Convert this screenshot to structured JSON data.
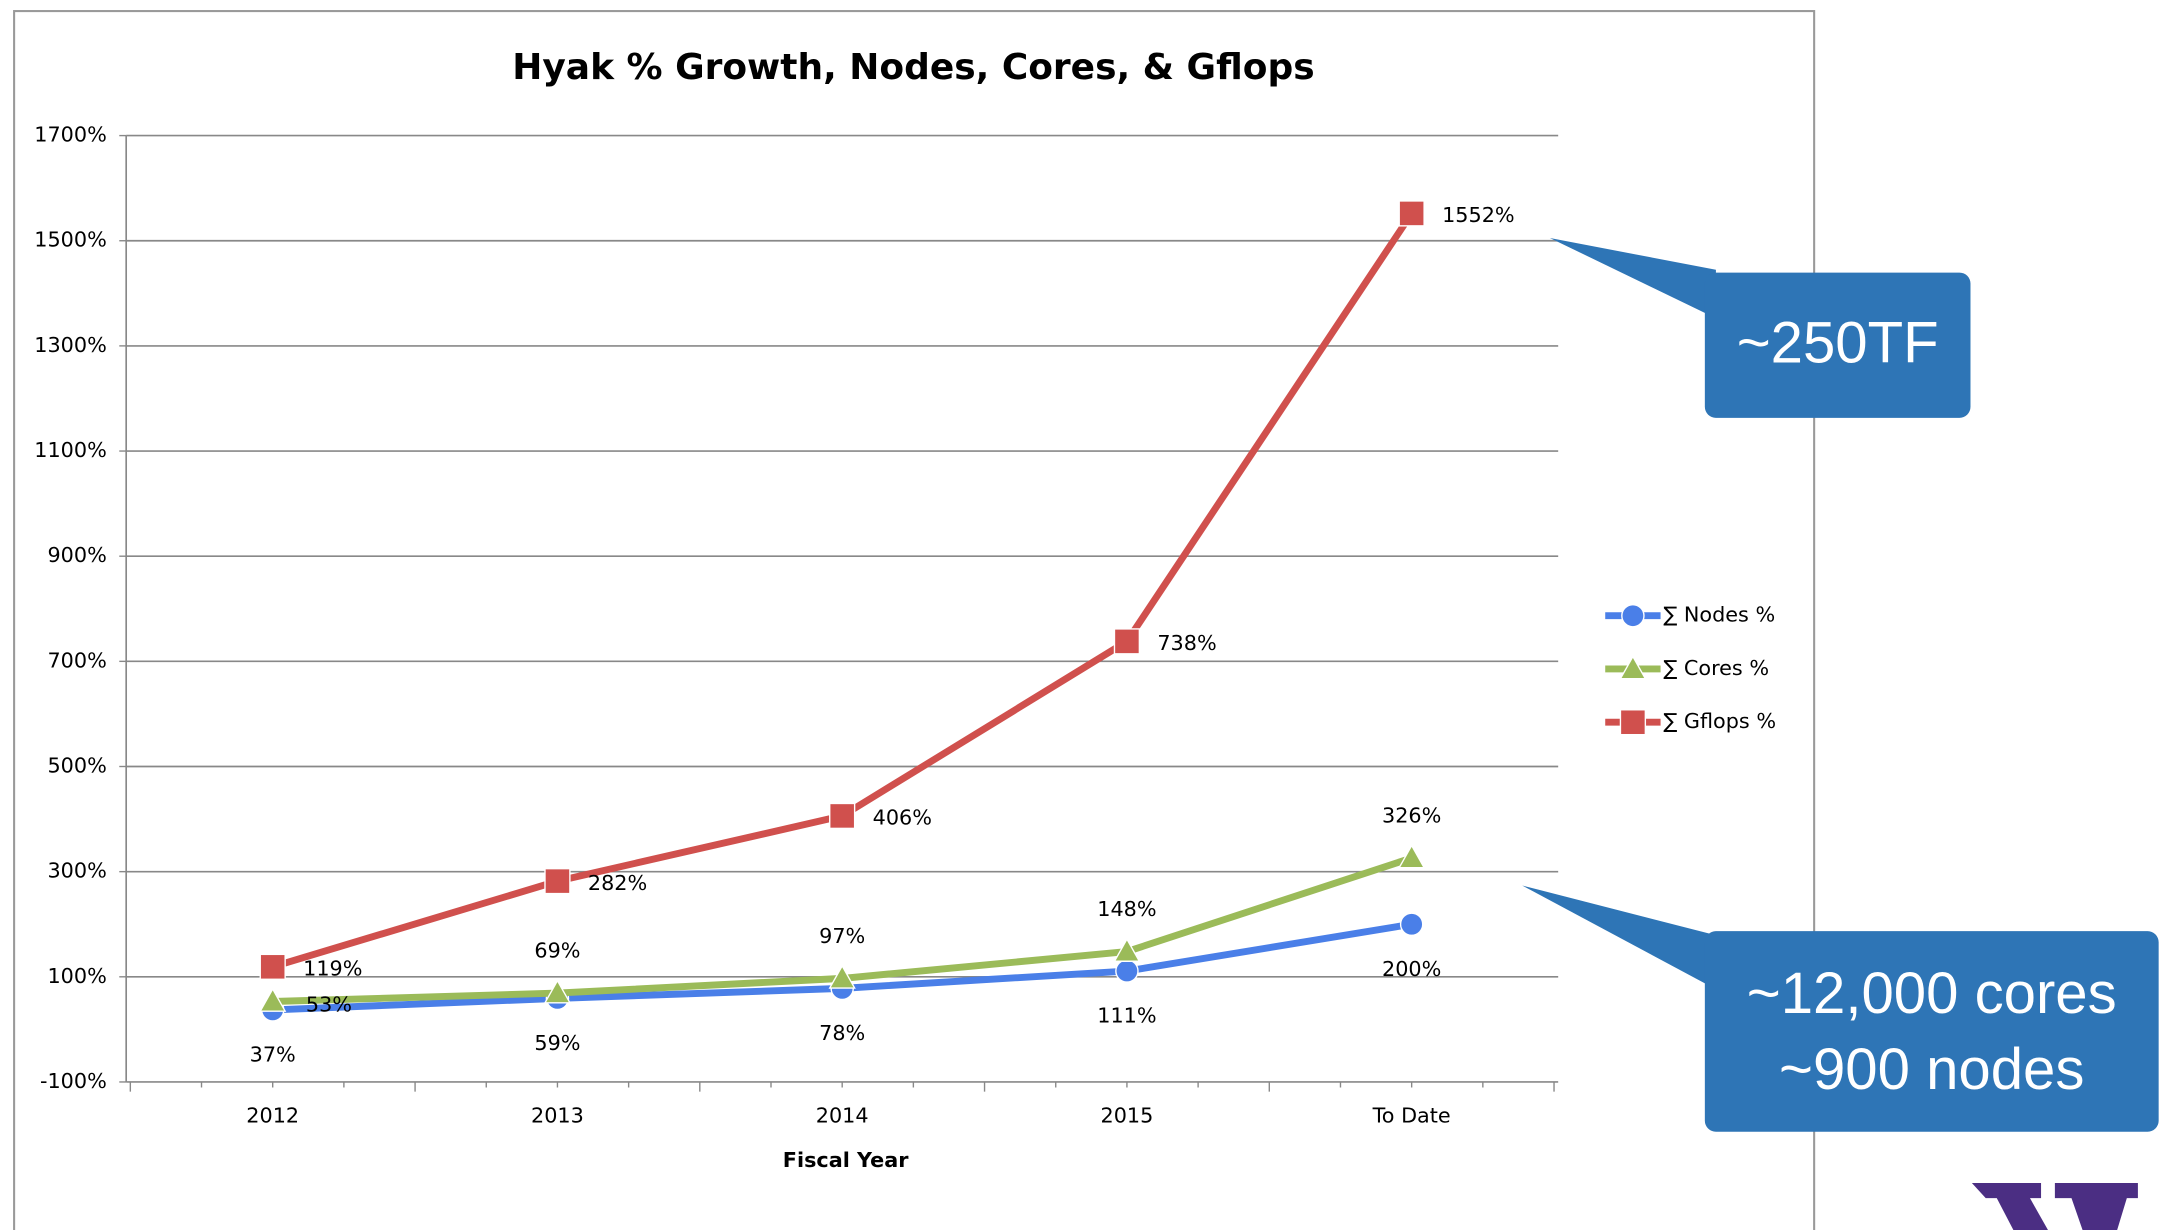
{
  "chart_data": {
    "type": "line",
    "title": "Hyak % Growth, Nodes, Cores, & Gflops",
    "x_label": "Fiscal Year",
    "categories": [
      "2012",
      "2013",
      "2014",
      "2015",
      "To Date"
    ],
    "series": [
      {
        "name": "∑ Nodes %",
        "color": "#4a7fe8",
        "marker": "circle",
        "values": [
          37,
          59,
          78,
          111,
          200
        ],
        "value_labels": [
          "37%",
          "59%",
          "78%",
          "111%",
          "200%"
        ]
      },
      {
        "name": "∑ Cores %",
        "color": "#9bbb59",
        "marker": "triangle",
        "values": [
          53,
          69,
          97,
          148,
          326
        ],
        "value_labels": [
          "53%",
          "69%",
          "97%",
          "148%",
          "326%"
        ]
      },
      {
        "name": "∑ Gflops %",
        "color": "#d0504d",
        "marker": "square",
        "values": [
          119,
          282,
          406,
          738,
          1552
        ],
        "value_labels": [
          "119%",
          "282%",
          "406%",
          "738%",
          "1552%"
        ]
      }
    ],
    "ylim": [
      -100,
      1700
    ],
    "yticks": [
      {
        "value": -100,
        "label": "-100%"
      },
      {
        "value": 100,
        "label": "100%"
      },
      {
        "value": 300,
        "label": "300%"
      },
      {
        "value": 500,
        "label": "500%"
      },
      {
        "value": 700,
        "label": "700%"
      },
      {
        "value": 900,
        "label": "900%"
      },
      {
        "value": 1100,
        "label": "1100%"
      },
      {
        "value": 1300,
        "label": "1300%"
      },
      {
        "value": 1500,
        "label": "1500%"
      },
      {
        "value": 1700,
        "label": "1700%"
      }
    ],
    "grid": true,
    "legend": "right",
    "annotations": [
      "~250TF",
      "~12,000 cores",
      "~900 nodes"
    ]
  }
}
